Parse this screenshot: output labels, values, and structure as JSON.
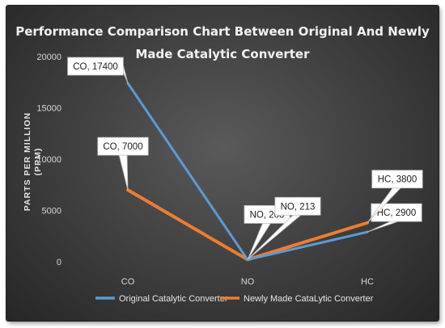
{
  "chart_data": {
    "type": "line",
    "title_lines": [
      "Performance Comparison Chart Between Original And Newly",
      "Made Catalytic Converter"
    ],
    "ylabel_lines": [
      "PARTS PER MILLION",
      "(PPM)"
    ],
    "xlabel": "",
    "categories": [
      "CO",
      "NO",
      "HC"
    ],
    "ylim": [
      0,
      20000
    ],
    "yticks": [
      0,
      5000,
      10000,
      15000,
      20000
    ],
    "grid": false,
    "legend_position": "bottom",
    "series": [
      {
        "name": "Original Catalytic Converter",
        "color": "#5b9bd5",
        "values": [
          17400,
          203,
          2900
        ],
        "labels": [
          "CO, 17400",
          "NO, 203",
          "HC, 2900"
        ]
      },
      {
        "name": "Newly Made CataLytic Converter",
        "color": "#ed7d31",
        "values": [
          7000,
          213,
          3800
        ],
        "labels": [
          "CO, 7000",
          "NO, 213",
          "HC, 3800"
        ]
      }
    ]
  }
}
